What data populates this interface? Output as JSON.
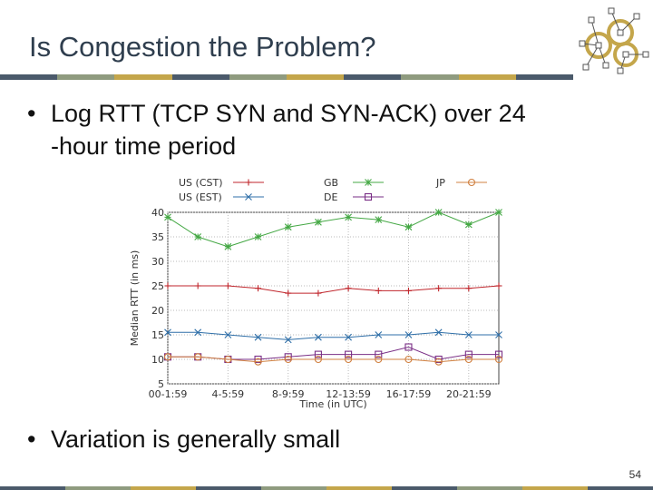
{
  "slide": {
    "title": "Is Congestion the Problem?",
    "bullets": [
      {
        "line1": "Log RTT (TCP SYN and SYN-ACK) over 24",
        "line2": "-hour time period"
      },
      {
        "line1": "Variation is generally small"
      }
    ],
    "bullet_symbol": "•",
    "page_number": "54",
    "rule_colors": [
      "#4b5a6b",
      "#8f9b7f",
      "#c4a64b",
      "#4b5a6b",
      "#8f9b7f",
      "#c4a64b",
      "#4b5a6b",
      "#8f9b7f",
      "#c4a64b",
      "#4b5a6b"
    ],
    "logo_icon": "network-graph-icon"
  },
  "chart_data": {
    "type": "line",
    "title": "",
    "xlabel": "Time (in UTC)",
    "ylabel": "Median RTT (in ms)",
    "ylim": [
      5,
      40
    ],
    "y_ticks": [
      5,
      10,
      15,
      20,
      25,
      30,
      35,
      40
    ],
    "x_tick_labels": [
      "00-1:59",
      "4-5:59",
      "8-9:59",
      "12-13:59",
      "16-17:59",
      "20-21:59"
    ],
    "x": [
      0,
      2,
      4,
      6,
      8,
      10,
      12,
      14,
      16,
      18,
      20,
      22
    ],
    "grid": true,
    "legend_position": "top",
    "series": [
      {
        "name": "US (CST)",
        "color": "#c0262c",
        "marker": "plus",
        "values": [
          25,
          25,
          25,
          24.5,
          23.5,
          23.5,
          24.5,
          24,
          24,
          24.5,
          24.5,
          25
        ]
      },
      {
        "name": "US (EST)",
        "color": "#2f6fa8",
        "marker": "x",
        "values": [
          15.5,
          15.5,
          15,
          14.5,
          14,
          14.5,
          14.5,
          15,
          15,
          15.5,
          15,
          15
        ]
      },
      {
        "name": "GB",
        "color": "#45a845",
        "marker": "star",
        "values": [
          39,
          35,
          33,
          35,
          37,
          38,
          39,
          38.5,
          37,
          40,
          37.5,
          40
        ]
      },
      {
        "name": "DE",
        "color": "#7a2f86",
        "marker": "square",
        "values": [
          10.5,
          10.5,
          10,
          10,
          10.5,
          11,
          11,
          11,
          12.5,
          10,
          11,
          11
        ]
      },
      {
        "name": "JP",
        "color": "#d08040",
        "marker": "circle",
        "values": [
          10.5,
          10.5,
          10,
          9.5,
          10,
          10,
          10,
          10,
          10,
          9.5,
          10,
          10
        ]
      }
    ]
  }
}
